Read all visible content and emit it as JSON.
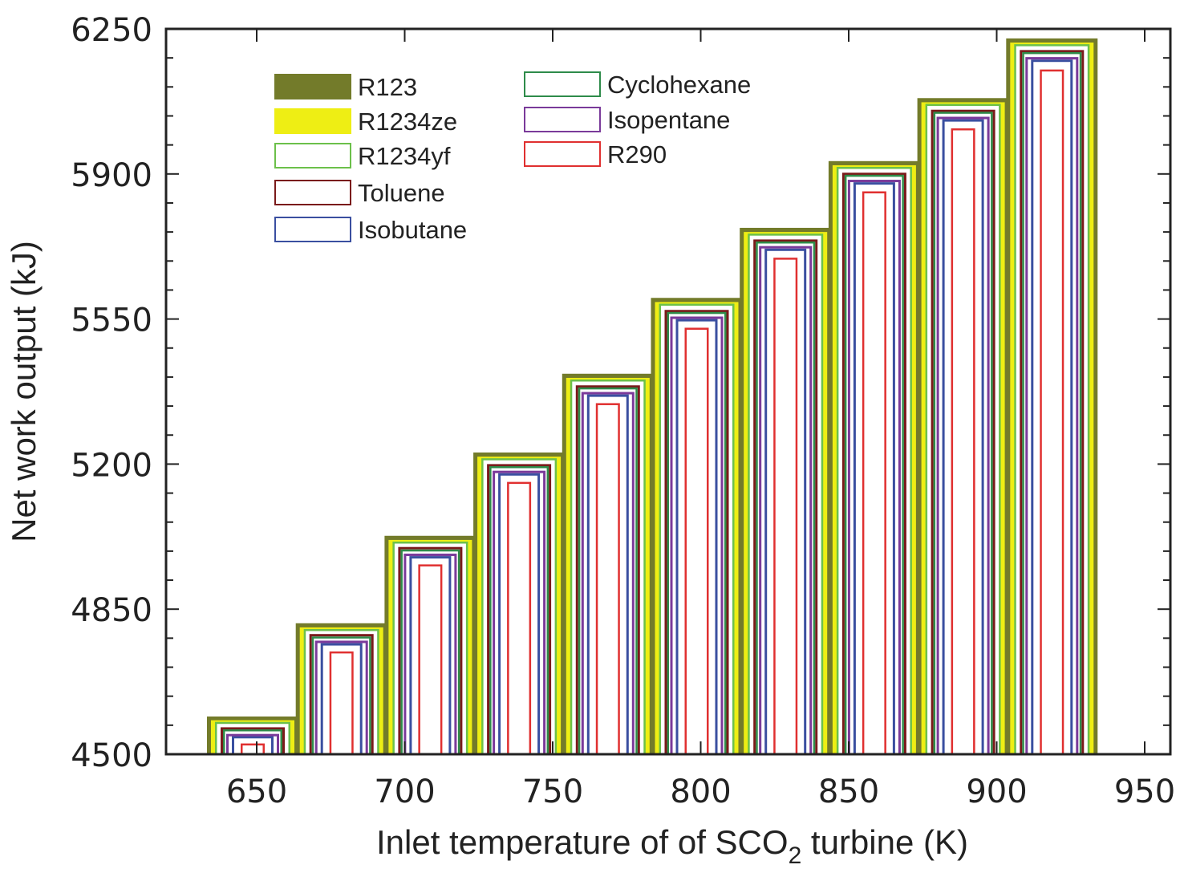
{
  "chart_data": {
    "type": "bar",
    "title": "",
    "xlabel_main": "Inlet temperature of of SCO",
    "xlabel_sub": "2",
    "xlabel_tail": " turbine (K)",
    "ylabel": "Net work output (kJ)",
    "xlim": [
      620,
      955
    ],
    "ylim": [
      4500,
      6250
    ],
    "x_ticks": [
      "650",
      "700",
      "750",
      "800",
      "850",
      "900",
      "950"
    ],
    "x_tick_values": [
      650,
      700,
      750,
      800,
      850,
      900,
      950
    ],
    "y_ticks": [
      "4500",
      "4850",
      "5200",
      "5550",
      "5900",
      "6250"
    ],
    "y_tick_values": [
      4500,
      4850,
      5200,
      5550,
      5900,
      6250
    ],
    "y_minor_step": 70,
    "categories": [
      650,
      680,
      710,
      740,
      770,
      800,
      830,
      860,
      890,
      920
    ],
    "legend_position": "top-left",
    "series": [
      {
        "name": "R123",
        "color": "#737b2a",
        "style": "filled",
        "values": [
          4591,
          4816,
          5027,
          5228,
          5418,
          5601,
          5770,
          5931,
          6083,
          6227
        ]
      },
      {
        "name": "R1234ze",
        "color": "#eeee14",
        "style": "filled",
        "values": [
          4582,
          4806,
          5017,
          5218,
          5408,
          5591,
          5760,
          5921,
          6073,
          6217
        ]
      },
      {
        "name": "R1234yf",
        "color": "#6cc04a",
        "style": "outline",
        "values": [
          4578,
          4802,
          5013,
          5214,
          5404,
          5587,
          5756,
          5917,
          6069,
          6213
        ]
      },
      {
        "name": "Toluene",
        "color": "#7a1a1a",
        "style": "outline",
        "values": [
          4565,
          4790,
          5000,
          5200,
          5390,
          5572,
          5742,
          5903,
          6055,
          6199
        ]
      },
      {
        "name": "Isobutane",
        "color": "#3a4fa0",
        "style": "outline",
        "values": [
          4544,
          4768,
          4978,
          5178,
          5368,
          5550,
          5720,
          5880,
          6032,
          6176
        ]
      },
      {
        "name": "Cyclohexane",
        "color": "#2e8b4a",
        "style": "outline",
        "values": [
          4560,
          4784,
          4994,
          5195,
          5385,
          5567,
          5737,
          5898,
          6050,
          6194
        ]
      },
      {
        "name": "Isopentane",
        "color": "#7a3a9a",
        "style": "outline",
        "values": [
          4549,
          4774,
          4984,
          5184,
          5374,
          5556,
          5726,
          5886,
          6038,
          6182
        ]
      },
      {
        "name": "R290",
        "color": "#e03030",
        "style": "outline",
        "values": [
          4526,
          4748,
          4958,
          5157,
          5347,
          5529,
          5698,
          5858,
          6010,
          6152
        ]
      }
    ]
  }
}
